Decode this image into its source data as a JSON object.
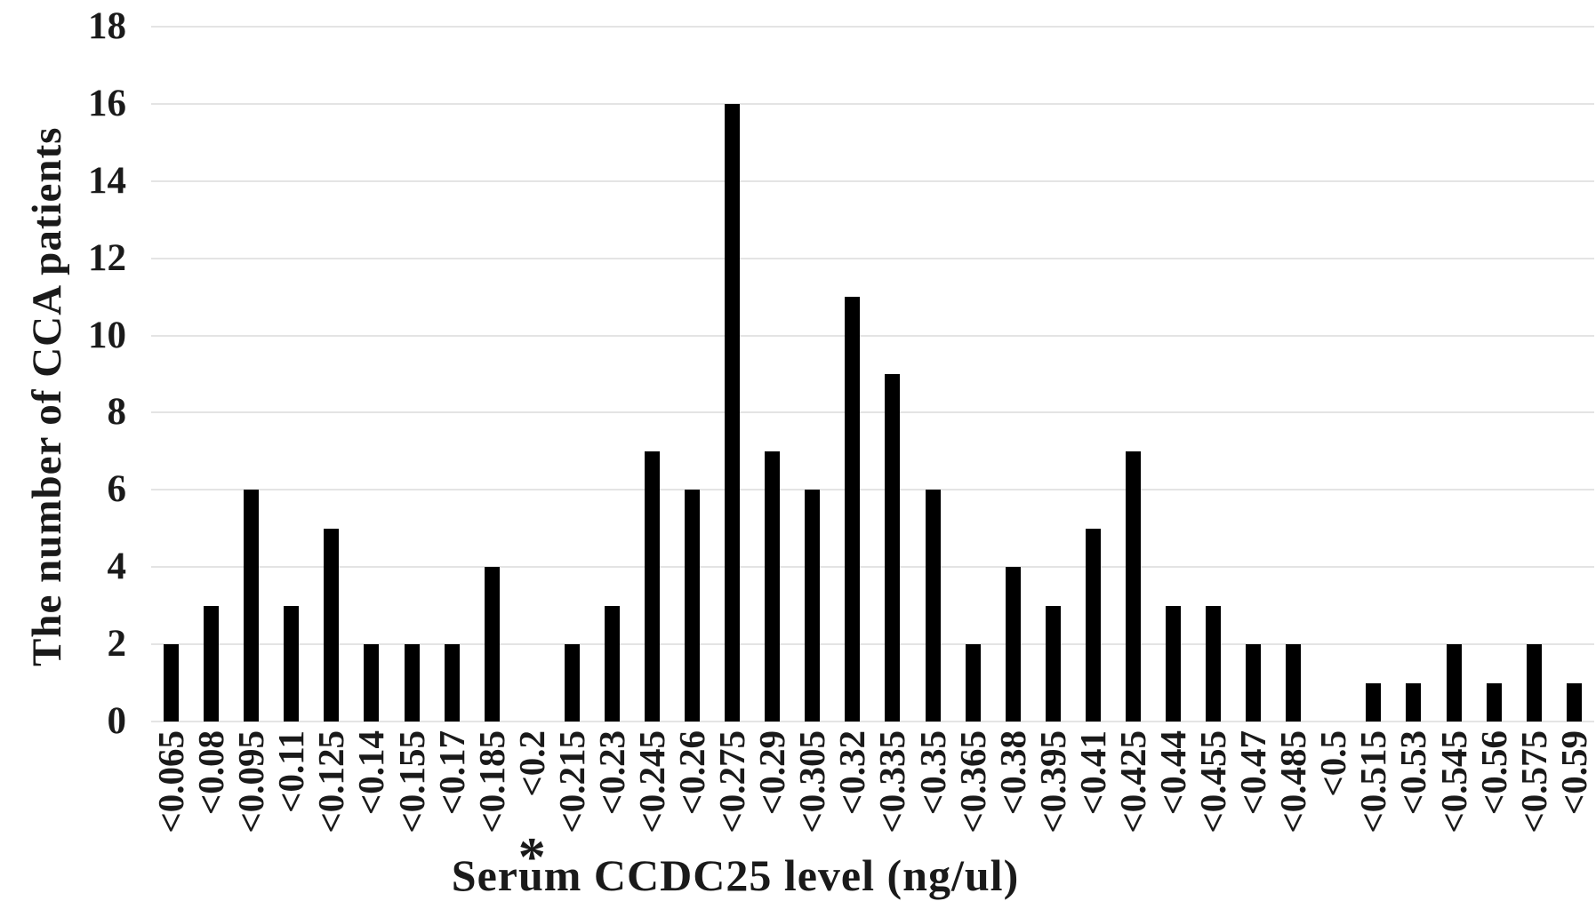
{
  "chart_data": {
    "type": "bar",
    "title": "",
    "xlabel": "Serum CCDC25 level (ng/ul)",
    "ylabel": "The number of CCA patients",
    "categories": [
      "<0.065",
      "<0.08",
      "<0.095",
      "<0.11",
      "<0.125",
      "<0.14",
      "<0.155",
      "<0.17",
      "<0.185",
      "<0.2",
      "<0.215",
      "<0.23",
      "<0.245",
      "<0.26",
      "<0.275",
      "<0.29",
      "<0.305",
      "<0.32",
      "<0.335",
      "<0.35",
      "<0.365",
      "<0.38",
      "<0.395",
      "<0.41",
      "<0.425",
      "<0.44",
      "<0.455",
      "<0.47",
      "<0.485",
      "<0.5",
      "<0.515",
      "<0.53",
      "<0.545",
      "<0.56",
      "<0.575",
      "<0.59"
    ],
    "values": [
      2,
      3,
      6,
      3,
      5,
      2,
      2,
      2,
      4,
      0,
      2,
      3,
      7,
      6,
      16,
      7,
      6,
      11,
      9,
      6,
      2,
      4,
      3,
      5,
      7,
      3,
      3,
      2,
      2,
      0,
      1,
      1,
      2,
      1,
      2,
      1
    ],
    "ylim": [
      0,
      18
    ],
    "yticks": [
      0,
      2,
      4,
      6,
      8,
      10,
      12,
      14,
      16,
      18
    ],
    "grid": "horizontal",
    "legend": "none",
    "annotation": {
      "text": "*",
      "category": "<0.2"
    },
    "colors": {
      "bar": "#000000",
      "gridline": "#e4e4e4",
      "text": "#1a1a1a",
      "background": "#ffffff"
    }
  }
}
